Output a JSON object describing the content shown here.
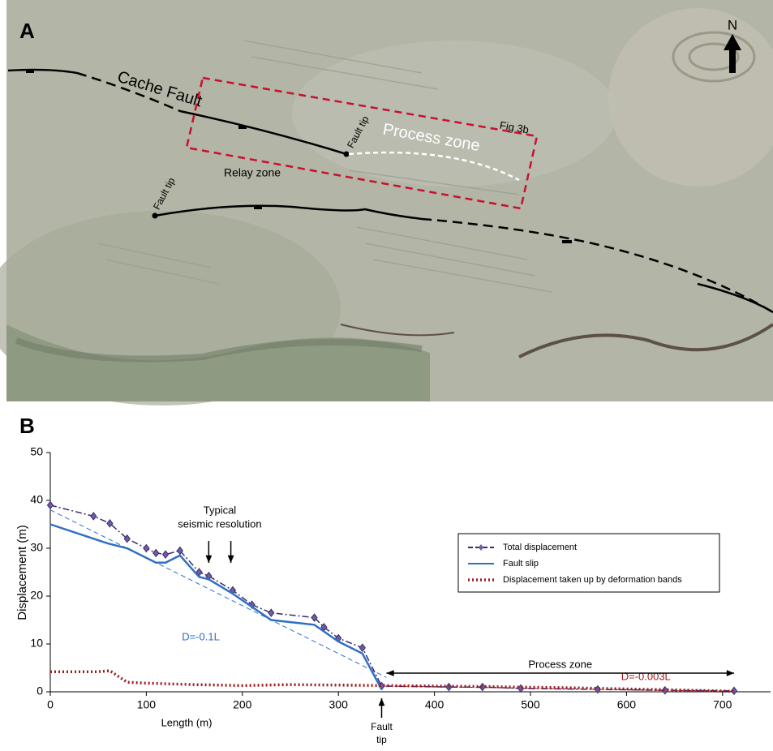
{
  "panel_a": {
    "label": "A",
    "north": "N",
    "fault_name": "Cache Fault",
    "fault_tip_upper": "Fault tip",
    "fault_tip_lower": "Fault tip",
    "process_zone": "Process zone",
    "box_label": "Fig 3b",
    "relay_zone": "Relay zone"
  },
  "chart_data": {
    "type": "line",
    "panel_label": "B",
    "x_label": "Length (m)",
    "y_label": "Displacement (m)",
    "xlim": [
      0,
      750
    ],
    "xticks": [
      0,
      100,
      200,
      300,
      400,
      500,
      600,
      700
    ],
    "ylim": [
      0,
      50
    ],
    "yticks": [
      0,
      10,
      20,
      30,
      40,
      50
    ],
    "legend": "upper right",
    "series": [
      {
        "name": "Total displacement",
        "color": "#3b2a6b",
        "marker": "diamond",
        "x": [
          0,
          45,
          62,
          80,
          100,
          110,
          120,
          135,
          155,
          165,
          190,
          210,
          230,
          275,
          285,
          300,
          325,
          345,
          415,
          450,
          490,
          570,
          640,
          712
        ],
        "values": [
          39,
          36.7,
          35.2,
          32,
          30,
          29,
          28.7,
          29.5,
          25,
          24.2,
          21.2,
          18.2,
          16.5,
          15.5,
          13.5,
          11.2,
          9.2,
          1.2,
          1.0,
          1.0,
          0.7,
          0.5,
          0.3,
          0.2
        ]
      },
      {
        "name": "Fault slip",
        "color": "#2f6fc4",
        "x": [
          0,
          60,
          80,
          110,
          120,
          135,
          155,
          165,
          190,
          230,
          275,
          300,
          325,
          345
        ],
        "values": [
          35,
          31,
          30,
          27,
          27,
          28.5,
          24,
          23.5,
          20.5,
          15,
          14,
          10.5,
          8,
          0.5
        ]
      },
      {
        "name": "Displacement taken up by deformation bands",
        "color": "#a01c1c",
        "dotted": true,
        "x": [
          0,
          50,
          62,
          80,
          100,
          150,
          200,
          250,
          300,
          350,
          450,
          550,
          650,
          712
        ],
        "values": [
          4.2,
          4.2,
          4.4,
          2,
          1.8,
          1.5,
          1.3,
          1.5,
          1.4,
          1.3,
          1.1,
          0.8,
          0.4,
          0.1
        ]
      }
    ],
    "fit_lines": [
      {
        "label": "D=-0.1L",
        "color": "#2f6fc4",
        "x": [
          0,
          350
        ],
        "values": [
          38,
          3
        ]
      },
      {
        "label": "D=-0.003L",
        "color": "#a01c1c",
        "x": [
          350,
          712
        ],
        "values": [
          1.2,
          0.1
        ]
      }
    ],
    "seismic_resolution": {
      "text": [
        "Typical",
        "seismic resolution"
      ],
      "x": [
        165,
        188
      ]
    },
    "process_zone": {
      "text": "Process zone",
      "x": [
        350,
        712
      ]
    },
    "fault_tip": {
      "text": [
        "Fault",
        "tip"
      ],
      "x": 345
    }
  }
}
